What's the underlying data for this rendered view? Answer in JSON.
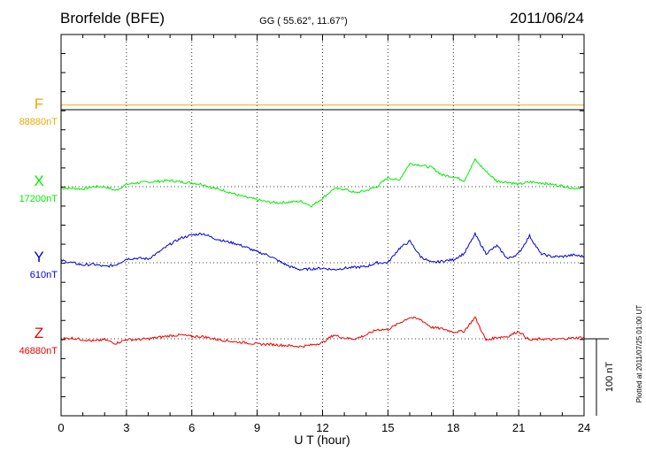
{
  "header": {
    "station": "Brorfelde (BFE)",
    "coords": "GG ( 55.62°,  11.67°)",
    "date": "2011/06/24"
  },
  "footer": {
    "plotted": "Plotted at 2011/07/25 01:00 UT"
  },
  "chart_data": {
    "type": "line",
    "xlabel": "U T (hour)",
    "xlim": [
      0,
      24
    ],
    "x_ticks": [
      "0",
      "3",
      "6",
      "9",
      "12",
      "15",
      "18",
      "21",
      "24"
    ],
    "scale_bar": "100 nT",
    "scale_bar_nT": 100,
    "grid": "dotted",
    "x": [
      0,
      0.5,
      1,
      1.5,
      2,
      2.5,
      3,
      3.5,
      4,
      4.5,
      5,
      5.5,
      6,
      6.5,
      7,
      7.5,
      8,
      8.5,
      9,
      9.5,
      10,
      10.5,
      11,
      11.5,
      12,
      12.5,
      13,
      13.5,
      14,
      14.5,
      15,
      15.5,
      16,
      16.5,
      17,
      17.5,
      18,
      18.5,
      19,
      19.5,
      20,
      20.5,
      21,
      21.5,
      22,
      22.5,
      23,
      23.5,
      24
    ],
    "series": [
      {
        "name": "F",
        "baseline_label": "88880nT",
        "color": "#f0a800",
        "values": [
          6,
          6,
          6,
          6,
          6,
          6,
          6,
          6,
          6,
          6,
          6,
          6,
          6,
          6,
          6,
          6,
          6,
          6,
          6,
          6,
          6,
          6,
          6,
          6,
          6,
          6,
          6,
          6,
          6,
          6,
          6,
          6,
          6,
          6,
          6,
          6,
          6,
          6,
          6,
          6,
          6,
          6,
          6,
          6,
          6,
          6,
          6,
          6,
          6
        ]
      },
      {
        "name": "X",
        "baseline_label": "17200nT",
        "color": "#00ee00",
        "values": [
          -2,
          -2,
          -3,
          0,
          0,
          -5,
          3,
          5,
          6,
          7,
          8,
          6,
          5,
          3,
          -2,
          -5,
          -10,
          -14,
          -17,
          -20,
          -21,
          -20,
          -19,
          -25,
          -15,
          -3,
          -3,
          -8,
          -5,
          0,
          12,
          8,
          30,
          28,
          25,
          15,
          13,
          8,
          35,
          20,
          7,
          6,
          3,
          6,
          5,
          3,
          1,
          -2,
          -1
        ]
      },
      {
        "name": "Y",
        "baseline_label": "610nT",
        "color": "#0000dd",
        "values": [
          3,
          0,
          -3,
          -2,
          -5,
          -3,
          5,
          6,
          5,
          14,
          24,
          32,
          36,
          38,
          32,
          28,
          25,
          20,
          14,
          10,
          2,
          -5,
          -9,
          -8,
          -7,
          -9,
          -7,
          -6,
          -5,
          0,
          0,
          18,
          28,
          8,
          0,
          2,
          4,
          12,
          37,
          12,
          22,
          5,
          12,
          35,
          12,
          8,
          8,
          10,
          8
        ]
      },
      {
        "name": "Z",
        "baseline_label": "46880nT",
        "color": "#ee0000",
        "values": [
          0,
          1,
          -1,
          -3,
          -1,
          -6,
          -1,
          -1,
          0,
          2,
          4,
          5,
          3,
          3,
          0,
          -2,
          -4,
          -5,
          -7,
          -7,
          -8,
          -9,
          -10,
          -8,
          -5,
          5,
          1,
          0,
          5,
          12,
          12,
          20,
          28,
          25,
          15,
          13,
          9,
          10,
          28,
          -2,
          2,
          3,
          10,
          -2,
          0,
          -1,
          0,
          1,
          2
        ]
      }
    ]
  }
}
